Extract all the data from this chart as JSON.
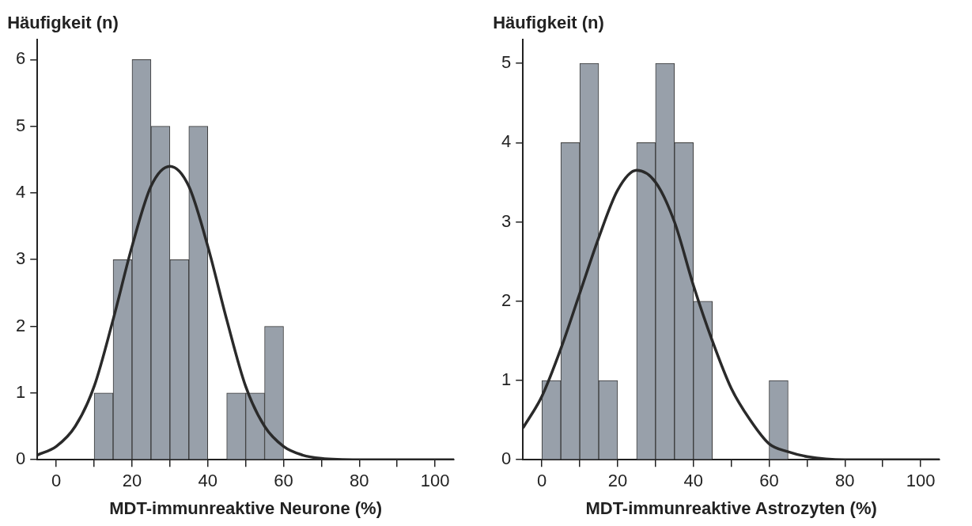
{
  "chart_data": [
    {
      "type": "histogram",
      "xlabel": "MDT-immunreaktive Neurone (%)",
      "ylabel": "Häufigkeit (n)",
      "xlim": [
        -5,
        105
      ],
      "ylim": [
        0,
        6.3
      ],
      "xticks": [
        0,
        {
          "value": 10,
          "label": null
        },
        20,
        {
          "value": 30,
          "label": null
        },
        40,
        {
          "value": 50,
          "label": null
        },
        60,
        {
          "value": 70,
          "label": null
        },
        80,
        {
          "value": 90,
          "label": null
        },
        100
      ],
      "yticks": [
        0,
        1,
        2,
        3,
        4,
        5,
        6
      ],
      "grid": false,
      "legend": false,
      "series": [
        {
          "color": "#98a0aa",
          "bins": [
            10,
            15,
            20,
            25,
            30,
            35,
            40,
            45,
            50,
            55,
            60
          ],
          "values": [
            1,
            3,
            6,
            5,
            3,
            5,
            0,
            1,
            1,
            2
          ]
        },
        {
          "type": "line",
          "color": "#2a2a2a",
          "marker": "none",
          "x": [
            -5,
            0,
            5,
            10,
            15,
            20,
            25,
            30,
            35,
            40,
            45,
            50,
            55,
            60,
            65,
            70,
            80,
            105
          ],
          "values": [
            0.07,
            0.2,
            0.5,
            1.1,
            2.1,
            3.2,
            4.1,
            4.4,
            4.1,
            3.2,
            2.1,
            1.1,
            0.5,
            0.2,
            0.07,
            0.02,
            0,
            0
          ]
        }
      ]
    },
    {
      "type": "histogram",
      "xlabel": "MDT-immunreaktive Astrozyten (%)",
      "ylabel": "Häufigkeit (n)",
      "xlim": [
        -5,
        105
      ],
      "ylim": [
        0,
        5.3
      ],
      "xticks": [
        0,
        {
          "value": 10,
          "label": null
        },
        20,
        {
          "value": 30,
          "label": null
        },
        40,
        {
          "value": 50,
          "label": null
        },
        60,
        {
          "value": 70,
          "label": null
        },
        80,
        {
          "value": 90,
          "label": null
        },
        100
      ],
      "yticks": [
        0,
        1,
        2,
        3,
        4,
        5
      ],
      "grid": false,
      "legend": false,
      "series": [
        {
          "color": "#98a0aa",
          "bins": [
            0,
            5,
            10,
            15,
            20,
            25,
            30,
            35,
            40,
            45,
            50,
            55,
            60,
            65
          ],
          "values": [
            1,
            4,
            5,
            1,
            0,
            4,
            5,
            4,
            2,
            0,
            0,
            0,
            1
          ]
        },
        {
          "type": "line",
          "color": "#2a2a2a",
          "marker": "none",
          "x": [
            -5,
            0,
            5,
            10,
            15,
            20,
            25,
            30,
            35,
            40,
            45,
            50,
            55,
            60,
            65,
            70,
            80,
            105
          ],
          "values": [
            0.4,
            0.8,
            1.4,
            2.1,
            2.8,
            3.4,
            3.65,
            3.5,
            3.0,
            2.2,
            1.5,
            0.9,
            0.5,
            0.2,
            0.1,
            0.04,
            0,
            0
          ]
        }
      ]
    }
  ]
}
